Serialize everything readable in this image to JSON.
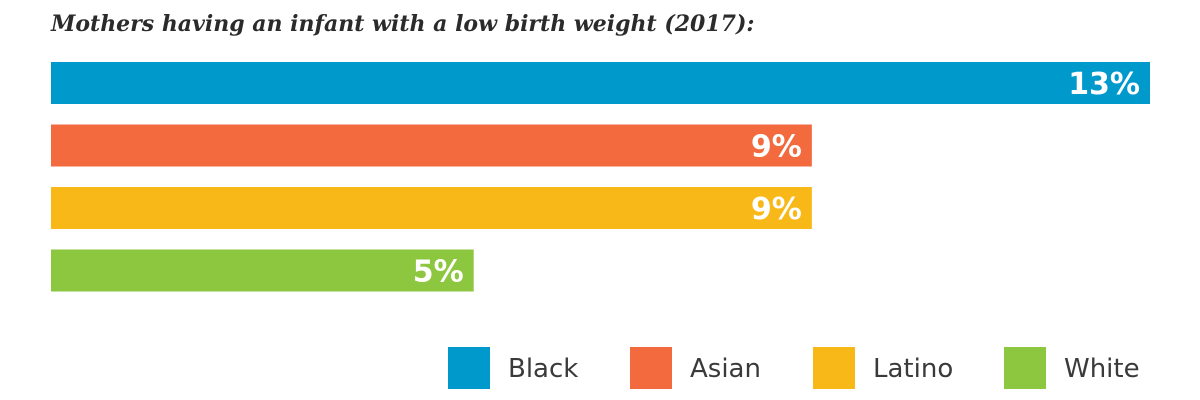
{
  "chart_data": {
    "type": "bar",
    "orientation": "horizontal",
    "title": "Mothers having an infant with a low birth weight (2017):",
    "categories": [
      "Black",
      "Asian",
      "Latino",
      "White"
    ],
    "values": [
      13,
      9,
      9,
      5
    ],
    "value_labels": [
      "13%",
      "9%",
      "9%",
      "5%"
    ],
    "colors": [
      "#0099cc",
      "#f26a3d",
      "#f7b818",
      "#8dc63f"
    ],
    "xlim": [
      0,
      13
    ],
    "grid": false,
    "legend_position": "bottom-right",
    "legend": [
      {
        "label": "Black",
        "color": "#0099cc"
      },
      {
        "label": "Asian",
        "color": "#f26a3d"
      },
      {
        "label": "Latino",
        "color": "#f7b818"
      },
      {
        "label": "White",
        "color": "#8dc63f"
      }
    ]
  }
}
